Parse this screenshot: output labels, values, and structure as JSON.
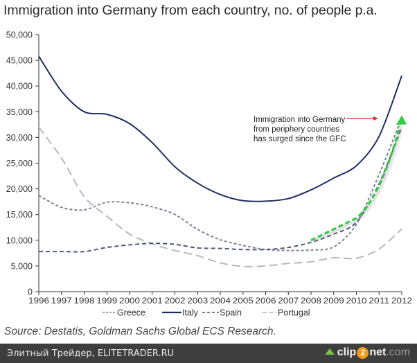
{
  "chart_data": {
    "type": "line",
    "title": "Immigration into Germany from each country, no. of people p.a.",
    "xlabel": "",
    "ylabel": "",
    "x": [
      1996,
      1997,
      1998,
      1999,
      2000,
      2001,
      2002,
      2003,
      2004,
      2005,
      2006,
      2007,
      2008,
      2009,
      2010,
      2011,
      2012
    ],
    "x_tick_labels": [
      "1996",
      "1997",
      "1998",
      "1999",
      "2000",
      "2001",
      "2002",
      "2003",
      "2004",
      "2005",
      "2006",
      "2007",
      "2008",
      "2009",
      "2010",
      "2011",
      "2012"
    ],
    "ylim": [
      0,
      50000
    ],
    "y_ticks": [
      0,
      5000,
      10000,
      15000,
      20000,
      25000,
      30000,
      35000,
      40000,
      45000,
      50000
    ],
    "y_tick_labels": [
      "0",
      "5,000",
      "10,000",
      "15,000",
      "20,000",
      "25,000",
      "30,000",
      "35,000",
      "40,000",
      "45,000",
      "50,000"
    ],
    "grid": false,
    "legend_position": "bottom-center",
    "series": [
      {
        "name": "Greece",
        "style": "short-dash",
        "color": "#7b8199",
        "values": [
          18700,
          16400,
          15900,
          17400,
          17300,
          16500,
          15000,
          12100,
          10100,
          9000,
          8200,
          8000,
          8100,
          8700,
          13100,
          22800,
          33800
        ]
      },
      {
        "name": "Italy",
        "style": "solid",
        "color": "#1f2d63",
        "values": [
          45800,
          39000,
          35000,
          34500,
          32700,
          29000,
          24300,
          21100,
          18900,
          17700,
          17600,
          18100,
          19800,
          22100,
          24500,
          30200,
          42000
        ]
      },
      {
        "name": "Spain",
        "style": "dash",
        "color": "#4b5578",
        "values": [
          7800,
          7800,
          7800,
          8600,
          9100,
          9400,
          9200,
          8500,
          8400,
          8200,
          8200,
          8600,
          9600,
          11200,
          13500,
          21000,
          32000
        ]
      },
      {
        "name": "Portugal",
        "style": "long-dash",
        "color": "#b5b8c2",
        "values": [
          32000,
          26000,
          18500,
          14700,
          11200,
          9300,
          8000,
          7000,
          5600,
          4900,
          5000,
          5500,
          5800,
          6600,
          6500,
          8300,
          12200
        ]
      }
    ],
    "annotations": [
      {
        "text_lines": [
          "Immigration into Germany",
          "from periphery countries",
          "has surged since the GFC"
        ],
        "arrow_color": "#d0312d"
      },
      {
        "type": "trend-arrow",
        "color": "#2ecc40",
        "from": [
          2008,
          10000
        ],
        "via": [
          2010,
          14300
        ],
        "to": [
          2012,
          33500
        ]
      }
    ]
  },
  "source": "Source: Destatis, Goldman Sachs Global ECS Research.",
  "footer": {
    "left_text": "Элитный Трейдер, ELITETRADER.RU",
    "brand_pre": "clip",
    "brand_num": "2",
    "brand_post": "net",
    "brand_tld": ".com"
  }
}
